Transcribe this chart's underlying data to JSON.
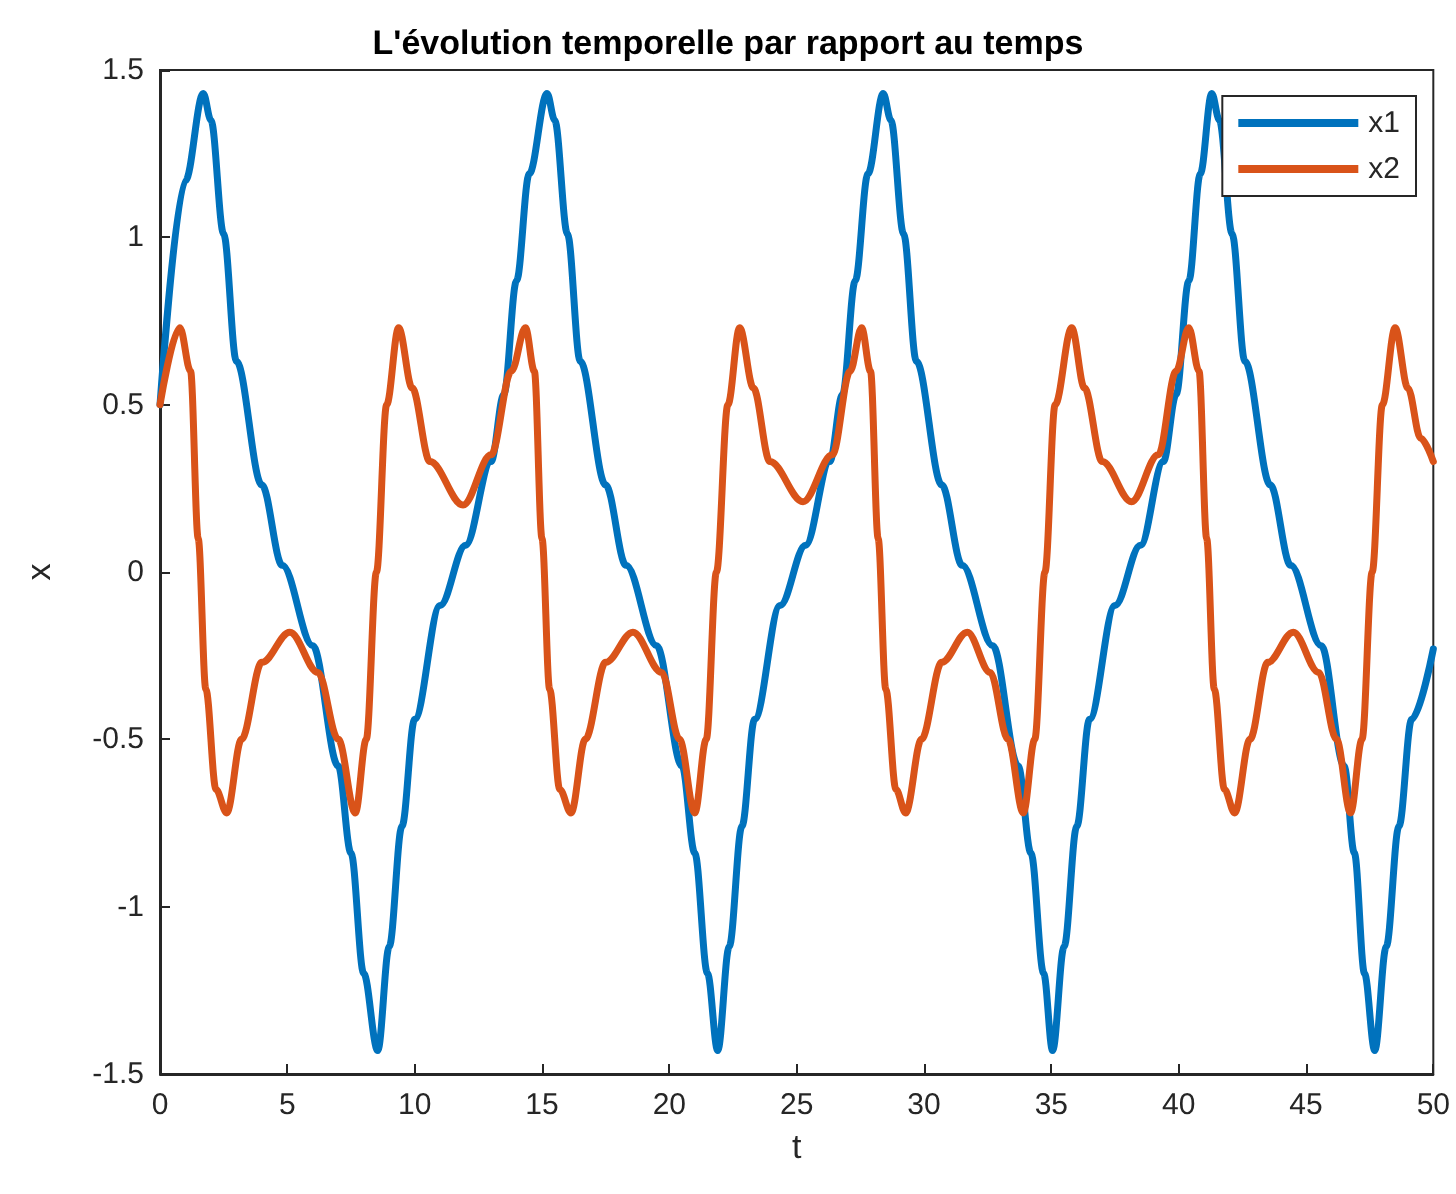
{
  "chart_data": {
    "type": "line",
    "title": "L'évolution temporelle par rapport au temps",
    "xlabel": "t",
    "ylabel": "x",
    "xlim": [
      0,
      50
    ],
    "xticks": [
      0,
      5,
      10,
      15,
      20,
      25,
      30,
      35,
      40,
      45,
      50
    ],
    "ylim": [
      -1.5,
      1.5
    ],
    "yticks": [
      -1.5,
      -1,
      -0.5,
      0,
      0.5,
      1,
      1.5
    ],
    "grid": false,
    "legend": "top right",
    "marker": "none",
    "line_style": "solid",
    "series": [
      {
        "name": "x1",
        "color": "#0072bd",
        "x": [
          0,
          1.0,
          1.7,
          2.0,
          2.5,
          3.0,
          4.0,
          4.8,
          6.0,
          7.0,
          7.5,
          8.0,
          8.55,
          9.0,
          9.5,
          10.0,
          11.0,
          12.0,
          13.0,
          13.5,
          14.0,
          14.5,
          15.2,
          15.5,
          16.0,
          16.5,
          17.5,
          18.3,
          19.5,
          20.5,
          21.0,
          21.5,
          21.9,
          22.35,
          22.85,
          23.35,
          24.35,
          25.35,
          26.3,
          26.8,
          27.3,
          27.8,
          28.4,
          28.7,
          29.2,
          29.7,
          30.7,
          31.5,
          32.7,
          33.7,
          34.2,
          34.7,
          35.05,
          35.5,
          36.0,
          36.5,
          37.5,
          38.5,
          39.4,
          39.9,
          40.4,
          40.85,
          41.3,
          41.6,
          42.1,
          42.6,
          43.6,
          44.4,
          45.6,
          46.5,
          46.9,
          47.3,
          47.7,
          48.15,
          48.65,
          49.15,
          50
        ],
        "values": [
          0.5,
          1.17,
          1.43,
          1.35,
          1.01,
          0.63,
          0.26,
          0.02,
          -0.22,
          -0.58,
          -0.84,
          -1.2,
          -1.43,
          -1.12,
          -0.76,
          -0.44,
          -0.1,
          0.08,
          0.33,
          0.53,
          0.87,
          1.19,
          1.43,
          1.35,
          1.01,
          0.63,
          0.26,
          0.02,
          -0.22,
          -0.58,
          -0.84,
          -1.2,
          -1.43,
          -1.12,
          -0.76,
          -0.44,
          -0.1,
          0.08,
          0.33,
          0.53,
          0.87,
          1.19,
          1.43,
          1.35,
          1.01,
          0.63,
          0.26,
          0.02,
          -0.22,
          -0.58,
          -0.84,
          -1.2,
          -1.43,
          -1.12,
          -0.76,
          -0.44,
          -0.1,
          0.08,
          0.33,
          0.53,
          0.87,
          1.19,
          1.43,
          1.35,
          1.01,
          0.63,
          0.26,
          0.02,
          -0.22,
          -0.58,
          -0.84,
          -1.2,
          -1.43,
          -1.12,
          -0.76,
          -0.44,
          -0.23
        ]
      },
      {
        "name": "x2",
        "color": "#d95319",
        "x": [
          0,
          0.78,
          1.2,
          1.5,
          1.8,
          2.2,
          2.62,
          3.2,
          4.0,
          5.1,
          6.2,
          7.0,
          7.67,
          8.1,
          8.5,
          8.9,
          9.37,
          9.9,
          10.6,
          11.9,
          13.0,
          13.8,
          14.35,
          14.7,
          15.0,
          15.3,
          15.7,
          16.14,
          16.7,
          17.5,
          18.57,
          19.7,
          20.4,
          21.0,
          21.45,
          21.85,
          22.3,
          22.76,
          23.3,
          23.95,
          25.25,
          26.4,
          27.1,
          27.55,
          27.9,
          28.2,
          28.5,
          28.9,
          29.28,
          29.9,
          30.7,
          31.7,
          32.6,
          33.3,
          33.9,
          34.35,
          34.75,
          35.15,
          35.8,
          36.3,
          37.0,
          38.15,
          39.2,
          39.9,
          40.4,
          40.8,
          41.1,
          41.4,
          41.8,
          42.2,
          42.8,
          43.5,
          44.5,
          45.5,
          46.2,
          46.75,
          47.2,
          47.6,
          48.0,
          48.5,
          49.0,
          49.5,
          50
        ],
        "values": [
          0.5,
          0.73,
          0.6,
          0.1,
          -0.35,
          -0.65,
          -0.72,
          -0.5,
          -0.27,
          -0.18,
          -0.3,
          -0.5,
          -0.72,
          -0.5,
          0,
          0.5,
          0.73,
          0.55,
          0.33,
          0.2,
          0.35,
          0.6,
          0.73,
          0.6,
          0.1,
          -0.35,
          -0.65,
          -0.72,
          -0.5,
          -0.27,
          -0.18,
          -0.3,
          -0.5,
          -0.72,
          -0.5,
          0,
          0.5,
          0.73,
          0.55,
          0.33,
          0.21,
          0.35,
          0.6,
          0.73,
          0.6,
          0.1,
          -0.35,
          -0.65,
          -0.72,
          -0.5,
          -0.27,
          -0.18,
          -0.3,
          -0.5,
          -0.72,
          -0.5,
          0,
          0.5,
          0.73,
          0.55,
          0.33,
          0.21,
          0.35,
          0.6,
          0.73,
          0.6,
          0.1,
          -0.35,
          -0.65,
          -0.72,
          -0.5,
          -0.27,
          -0.18,
          -0.3,
          -0.5,
          -0.72,
          -0.5,
          0,
          0.5,
          0.73,
          0.55,
          0.4,
          0.33
        ]
      }
    ]
  }
}
